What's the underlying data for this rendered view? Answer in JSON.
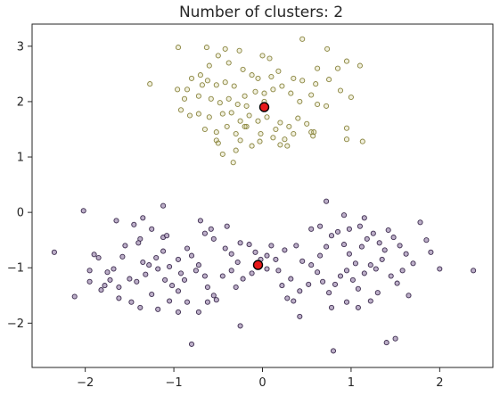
{
  "chart_data": {
    "type": "scatter",
    "title": "Number of clusters: 2",
    "xlabel": "",
    "ylabel": "",
    "xlim": [
      -2.6,
      2.6
    ],
    "ylim": [
      -2.8,
      3.4
    ],
    "xticks": [
      -2,
      -1,
      0,
      1,
      2
    ],
    "yticks": [
      -2,
      -1,
      0,
      1,
      2,
      3
    ],
    "grid": false,
    "legend": "none",
    "colors": {
      "cluster_upper": "#c9c47a",
      "cluster_upper_edge": "#8a8540",
      "cluster_lower": "#a593b6",
      "cluster_lower_edge": "#3d2d4f",
      "centroid": "#e8191a",
      "centroid_edge": "#000000"
    },
    "series": [
      {
        "cluster": "upper",
        "points": [
          [
            -0.95,
            2.98
          ],
          [
            -0.63,
            2.98
          ],
          [
            -0.42,
            2.95
          ],
          [
            -0.26,
            2.92
          ],
          [
            -0.5,
            2.83
          ],
          [
            -0.38,
            2.7
          ],
          [
            0.0,
            2.83
          ],
          [
            0.08,
            2.78
          ],
          [
            0.45,
            3.13
          ],
          [
            0.73,
            2.95
          ],
          [
            0.95,
            2.73
          ],
          [
            1.1,
            2.65
          ],
          [
            0.62,
            2.6
          ],
          [
            0.85,
            2.6
          ],
          [
            -0.6,
            2.65
          ],
          [
            -0.7,
            2.48
          ],
          [
            -0.8,
            2.42
          ],
          [
            -0.85,
            2.22
          ],
          [
            -0.88,
            2.05
          ],
          [
            -0.96,
            2.22
          ],
          [
            -0.68,
            2.3
          ],
          [
            -0.62,
            2.38
          ],
          [
            -0.52,
            2.3
          ],
          [
            -0.42,
            2.35
          ],
          [
            -0.32,
            2.28
          ],
          [
            -0.22,
            2.58
          ],
          [
            -0.12,
            2.48
          ],
          [
            -0.05,
            2.42
          ],
          [
            0.1,
            2.45
          ],
          [
            0.18,
            2.55
          ],
          [
            0.35,
            2.42
          ],
          [
            0.45,
            2.38
          ],
          [
            0.6,
            2.32
          ],
          [
            0.75,
            2.4
          ],
          [
            0.88,
            2.2
          ],
          [
            -1.27,
            2.32
          ],
          [
            -0.72,
            2.1
          ],
          [
            -0.58,
            2.05
          ],
          [
            -0.48,
            1.98
          ],
          [
            -0.38,
            2.05
          ],
          [
            -0.28,
            1.95
          ],
          [
            -0.18,
            1.92
          ],
          [
            -0.08,
            2.18
          ],
          [
            0.02,
            2.15
          ],
          [
            0.12,
            2.22
          ],
          [
            0.22,
            2.28
          ],
          [
            0.32,
            2.15
          ],
          [
            0.42,
            2.0
          ],
          [
            0.55,
            2.12
          ],
          [
            0.62,
            1.95
          ],
          [
            0.72,
            1.92
          ],
          [
            1.0,
            2.08
          ],
          [
            -0.92,
            1.85
          ],
          [
            -0.82,
            1.75
          ],
          [
            -0.72,
            1.78
          ],
          [
            -0.6,
            1.72
          ],
          [
            -0.45,
            1.78
          ],
          [
            -0.35,
            1.8
          ],
          [
            -0.25,
            1.65
          ],
          [
            -0.15,
            1.75
          ],
          [
            -0.05,
            1.65
          ],
          [
            0.05,
            1.72
          ],
          [
            0.2,
            1.62
          ],
          [
            0.3,
            1.55
          ],
          [
            0.4,
            1.7
          ],
          [
            0.5,
            1.6
          ],
          [
            -0.65,
            1.5
          ],
          [
            -0.52,
            1.45
          ],
          [
            -0.4,
            1.55
          ],
          [
            -0.3,
            1.42
          ],
          [
            -0.18,
            1.55
          ],
          [
            -0.02,
            1.42
          ],
          [
            0.15,
            1.5
          ],
          [
            0.25,
            1.32
          ],
          [
            0.35,
            1.42
          ],
          [
            0.55,
            1.45
          ],
          [
            0.57,
            1.38
          ],
          [
            0.95,
            1.52
          ],
          [
            0.95,
            1.32
          ],
          [
            1.13,
            1.28
          ],
          [
            -0.52,
            1.3
          ],
          [
            -0.5,
            1.25
          ],
          [
            -0.45,
            1.05
          ],
          [
            -0.3,
            1.12
          ],
          [
            -0.25,
            1.3
          ],
          [
            -0.12,
            1.2
          ],
          [
            -0.03,
            1.28
          ],
          [
            0.2,
            1.22
          ],
          [
            0.28,
            1.2
          ],
          [
            -0.33,
            0.9
          ],
          [
            -0.2,
            1.55
          ],
          [
            0.58,
            1.45
          ],
          [
            0.02,
            2.0
          ],
          [
            -0.2,
            2.1
          ],
          [
            0.12,
            1.35
          ]
        ]
      },
      {
        "cluster": "lower",
        "points": [
          [
            -2.02,
            0.03
          ],
          [
            -2.35,
            -0.72
          ],
          [
            -1.9,
            -0.76
          ],
          [
            -1.85,
            -0.82
          ],
          [
            -1.95,
            -1.05
          ],
          [
            -1.75,
            -1.08
          ],
          [
            -1.72,
            -1.22
          ],
          [
            -1.62,
            -1.35
          ],
          [
            -1.65,
            -0.15
          ],
          [
            -1.45,
            -0.22
          ],
          [
            -1.38,
            -0.48
          ],
          [
            -1.55,
            -0.6
          ],
          [
            -1.58,
            -0.8
          ],
          [
            -1.35,
            -0.9
          ],
          [
            -1.5,
            -1.2
          ],
          [
            -1.42,
            -1.25
          ],
          [
            -1.32,
            -1.12
          ],
          [
            -1.28,
            -0.95
          ],
          [
            -1.12,
            -0.45
          ],
          [
            -1.08,
            -0.42
          ],
          [
            -1.12,
            -0.7
          ],
          [
            -1.2,
            -0.82
          ],
          [
            -1.18,
            -1.02
          ],
          [
            -1.05,
            -0.98
          ],
          [
            -0.95,
            -0.85
          ],
          [
            -0.92,
            -1.1
          ],
          [
            -0.85,
            -0.65
          ],
          [
            -0.8,
            -0.78
          ],
          [
            -0.72,
            -0.95
          ],
          [
            -0.65,
            -1.15
          ],
          [
            -0.65,
            -0.38
          ],
          [
            -0.55,
            -0.48
          ],
          [
            -0.42,
            -0.65
          ],
          [
            -0.35,
            -0.75
          ],
          [
            -0.28,
            -0.9
          ],
          [
            -0.25,
            -0.55
          ],
          [
            -0.15,
            -0.58
          ],
          [
            -0.08,
            -0.72
          ],
          [
            -0.02,
            -0.85
          ],
          [
            0.05,
            -0.78
          ],
          [
            -1.12,
            0.12
          ],
          [
            -1.35,
            -0.1
          ],
          [
            -1.25,
            -0.3
          ],
          [
            -1.1,
            -1.22
          ],
          [
            -1.02,
            -1.32
          ],
          [
            -0.95,
            -1.42
          ],
          [
            -0.88,
            -1.22
          ],
          [
            -0.75,
            -1.05
          ],
          [
            -0.62,
            -1.35
          ],
          [
            -0.55,
            -1.5
          ],
          [
            -0.45,
            -1.15
          ],
          [
            -0.35,
            -1.05
          ],
          [
            -0.22,
            -1.2
          ],
          [
            -0.12,
            -1.1
          ],
          [
            -1.78,
            -1.32
          ],
          [
            -1.62,
            -1.55
          ],
          [
            -1.48,
            -1.62
          ],
          [
            -1.38,
            -1.72
          ],
          [
            -1.25,
            -1.48
          ],
          [
            -1.18,
            -1.75
          ],
          [
            -1.05,
            -1.6
          ],
          [
            -0.95,
            -1.8
          ],
          [
            -0.85,
            -1.62
          ],
          [
            -0.72,
            -1.8
          ],
          [
            -0.62,
            -1.62
          ],
          [
            -0.52,
            -1.58
          ],
          [
            -2.12,
            -1.52
          ],
          [
            -1.95,
            -1.25
          ],
          [
            -1.82,
            -1.4
          ],
          [
            -0.8,
            -2.38
          ],
          [
            -0.25,
            -2.05
          ],
          [
            0.18,
            -1.05
          ],
          [
            0.22,
            -1.32
          ],
          [
            0.28,
            -1.55
          ],
          [
            0.32,
            -1.2
          ],
          [
            0.38,
            -0.6
          ],
          [
            0.45,
            -0.88
          ],
          [
            0.55,
            -0.95
          ],
          [
            0.65,
            -0.78
          ],
          [
            0.72,
            -0.62
          ],
          [
            0.78,
            -0.42
          ],
          [
            0.85,
            -0.35
          ],
          [
            0.92,
            -0.58
          ],
          [
            0.98,
            -0.75
          ],
          [
            1.05,
            -0.92
          ],
          [
            1.12,
            -0.62
          ],
          [
            1.18,
            -0.48
          ],
          [
            1.25,
            -0.38
          ],
          [
            1.32,
            -0.55
          ],
          [
            1.38,
            -0.68
          ],
          [
            1.42,
            -0.32
          ],
          [
            1.48,
            -0.45
          ],
          [
            1.55,
            -0.6
          ],
          [
            1.62,
            -0.75
          ],
          [
            1.7,
            -0.92
          ],
          [
            1.78,
            -0.18
          ],
          [
            1.85,
            -0.5
          ],
          [
            0.62,
            -1.08
          ],
          [
            0.68,
            -1.25
          ],
          [
            0.75,
            -1.45
          ],
          [
            0.82,
            -1.3
          ],
          [
            0.88,
            -1.15
          ],
          [
            0.95,
            -1.05
          ],
          [
            1.02,
            -1.22
          ],
          [
            1.08,
            -1.38
          ],
          [
            1.15,
            -1.1
          ],
          [
            1.22,
            -0.95
          ],
          [
            1.28,
            -1.02
          ],
          [
            1.35,
            -0.85
          ],
          [
            1.45,
            -1.15
          ],
          [
            1.52,
            -1.28
          ],
          [
            1.58,
            -1.05
          ],
          [
            1.65,
            -1.5
          ],
          [
            0.52,
            -1.3
          ],
          [
            0.42,
            -1.42
          ],
          [
            0.35,
            -1.6
          ],
          [
            0.72,
            0.2
          ],
          [
            0.92,
            -0.05
          ],
          [
            1.15,
            -0.1
          ],
          [
            0.78,
            -1.72
          ],
          [
            0.95,
            -1.62
          ],
          [
            0.8,
            -2.5
          ],
          [
            1.4,
            -2.35
          ],
          [
            1.5,
            -2.28
          ],
          [
            2.0,
            -1.02
          ],
          [
            2.38,
            -1.05
          ],
          [
            1.9,
            -0.72
          ],
          [
            0.55,
            -0.3
          ],
          [
            0.65,
            -0.25
          ],
          [
            0.1,
            -0.6
          ],
          [
            0.05,
            -1.02
          ],
          [
            0.15,
            -0.85
          ],
          [
            0.25,
            -0.68
          ],
          [
            1.08,
            -1.72
          ],
          [
            1.22,
            -1.6
          ],
          [
            1.3,
            -1.45
          ],
          [
            1.1,
            -0.25
          ],
          [
            0.98,
            -0.3
          ],
          [
            -0.4,
            -0.25
          ],
          [
            -0.58,
            -0.3
          ],
          [
            -0.7,
            -0.15
          ],
          [
            -1.4,
            -0.55
          ],
          [
            -1.68,
            -1.02
          ],
          [
            -0.3,
            -1.35
          ],
          [
            0.42,
            -1.88
          ]
        ]
      }
    ],
    "centroids": [
      [
        0.02,
        1.9
      ],
      [
        -0.05,
        -0.95
      ]
    ]
  }
}
